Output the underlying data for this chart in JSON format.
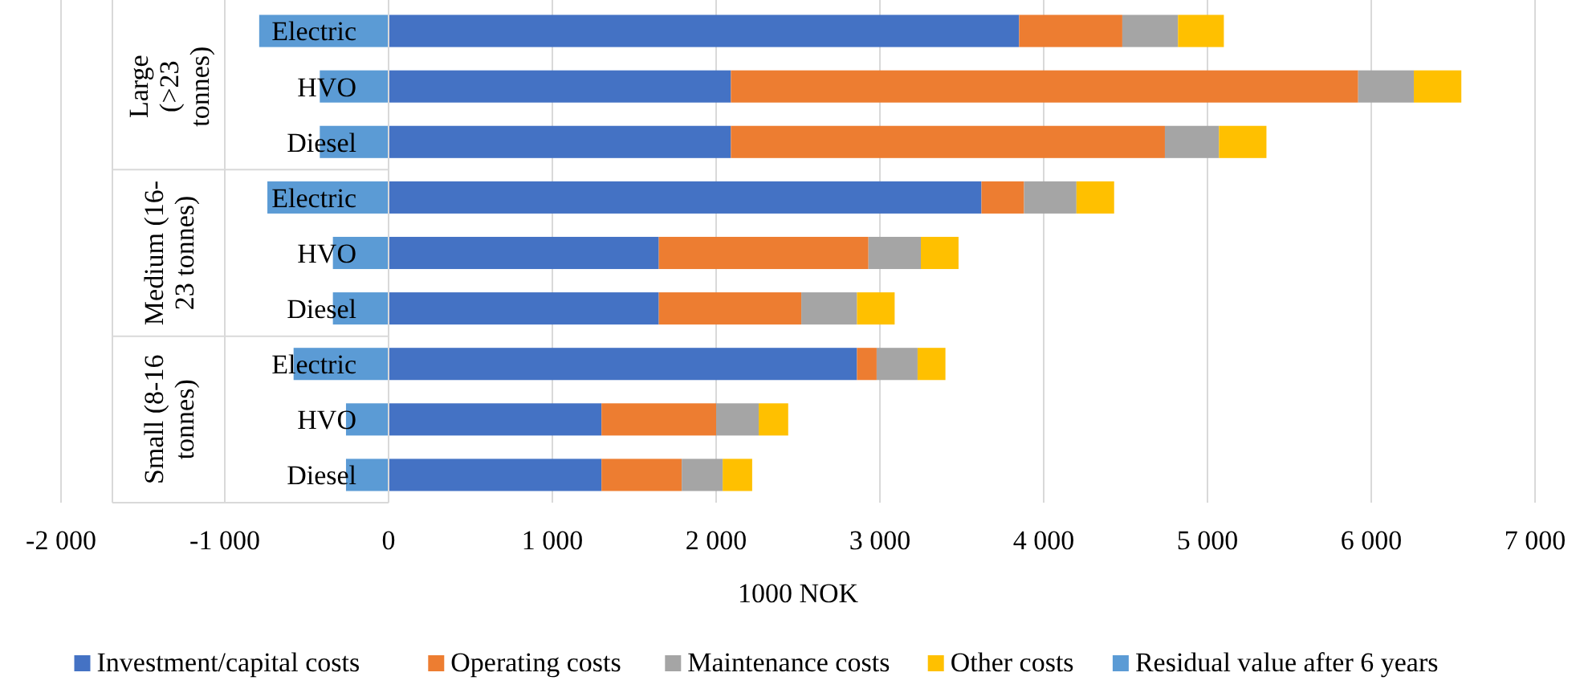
{
  "chart_data": {
    "type": "bar",
    "orientation": "horizontal",
    "stacked": true,
    "categories": [
      "Electric",
      "HVO",
      "Diesel",
      "Electric",
      "HVO",
      "Diesel",
      "Electric",
      "HVO",
      "Diesel"
    ],
    "series": [
      {
        "name": "Investment/capital costs",
        "color": "#4472c4",
        "values": [
          3850,
          2090,
          2090,
          3620,
          1650,
          1650,
          2860,
          1300,
          1300
        ]
      },
      {
        "name": "Operating costs",
        "color": "#ed7d31",
        "values": [
          630,
          3830,
          2650,
          260,
          1280,
          870,
          120,
          700,
          490
        ]
      },
      {
        "name": "Maintenance costs",
        "color": "#a5a5a5",
        "values": [
          340,
          340,
          330,
          320,
          320,
          340,
          250,
          260,
          250
        ]
      },
      {
        "name": "Other costs",
        "color": "#ffc000",
        "values": [
          280,
          290,
          290,
          230,
          230,
          230,
          170,
          180,
          180
        ]
      },
      {
        "name": "Residual value after 6 years",
        "color": "#5b9bd5",
        "values": [
          -790,
          -420,
          -420,
          -740,
          -340,
          -340,
          -580,
          -260,
          -260
        ]
      }
    ],
    "annotations": [
      "Large (>23 tonnes)",
      "Medium (16-23 tonnes)",
      "Small (8-16 tonnes)"
    ],
    "xlabel": "1000 NOK",
    "xlim": [
      -2000,
      7000
    ],
    "xticks": [
      {
        "value": -2000,
        "label": "-2 000"
      },
      {
        "value": -1000,
        "label": "-1 000"
      },
      0,
      {
        "value": 1000,
        "label": "1 000"
      },
      {
        "value": 2000,
        "label": "2 000"
      },
      {
        "value": 3000,
        "label": "3 000"
      },
      {
        "value": 4000,
        "label": "4 000"
      },
      {
        "value": 5000,
        "label": "5 000"
      },
      {
        "value": 6000,
        "label": "6 000"
      },
      {
        "value": 7000,
        "label": "7 000"
      }
    ],
    "grid": "x",
    "legend": "bottom"
  }
}
